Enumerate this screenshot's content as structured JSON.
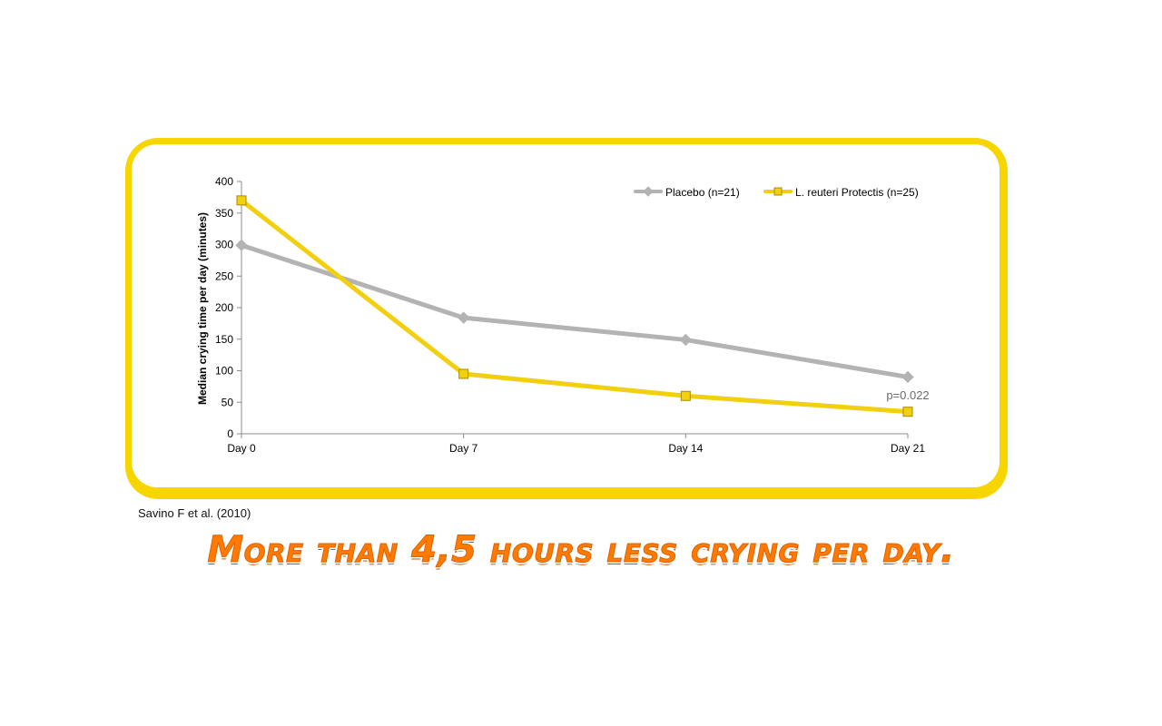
{
  "chart_data": {
    "type": "line",
    "title": "",
    "xlabel": "",
    "ylabel": "Median crying time per day (minutes)",
    "categories": [
      "Day 0",
      "Day 7",
      "Day 14",
      "Day 21"
    ],
    "ylim": [
      0,
      400
    ],
    "yticks": [
      0,
      50,
      100,
      150,
      200,
      250,
      300,
      350,
      400
    ],
    "grid": false,
    "legend_position": "top-right",
    "series": [
      {
        "name": "Placebo (n=21)",
        "values": [
          299,
          184,
          149,
          90
        ],
        "color": "#b3b3b3",
        "marker": "diamond"
      },
      {
        "name": "L. reuteri Protectis (n=25)",
        "values": [
          370,
          95,
          60,
          35
        ],
        "color": "#f2cf0f",
        "marker": "square"
      }
    ],
    "annotations": [
      {
        "text": "p=0.022",
        "x": "Day 21",
        "y": 62
      }
    ]
  },
  "citation": "Savino F et al. (2010)",
  "headline": "More than 4,5 hours less crying per day.",
  "colors": {
    "frame": "#f7d600",
    "headline": "#ff7b00"
  }
}
